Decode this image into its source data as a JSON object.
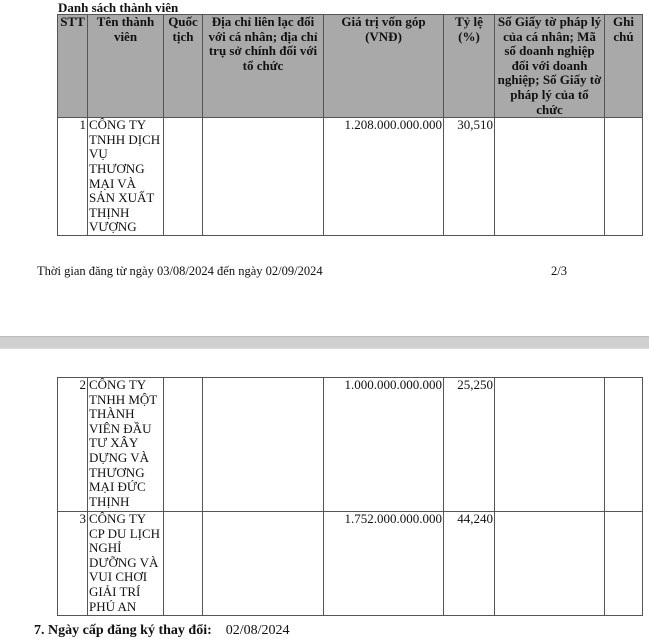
{
  "section_title": "Danh sách thành viên",
  "columns": [
    "STT",
    "Tên thành viên",
    "Quốc tịch",
    "Địa chỉ liên lạc đối với cá nhân; địa chỉ trụ sở chính đối với tổ chức",
    "Giá trị vốn góp (VNĐ)",
    "Tỷ lệ (%)",
    "Số Giấy tờ pháp lý của cá nhân; Mã số doanh nghiệp đối với doanh nghiệp; Số Giấy tờ pháp lý của tổ chức",
    "Ghi chú"
  ],
  "rows": [
    {
      "stt": "1",
      "name": "CÔNG TY TNHH DỊCH VỤ THƯƠNG MẠI VÀ SẢN XUẤT THỊNH VƯỢNG",
      "nationality": "",
      "address": "",
      "capital": "1.208.000.000.000",
      "ratio": "30,510",
      "legal_id": "",
      "note": ""
    },
    {
      "stt": "2",
      "name": "CÔNG TY TNHH MỘT THÀNH VIÊN ĐẦU TƯ XÂY DỰNG VÀ THƯƠNG MẠI ĐỨC THỊNH",
      "nationality": "",
      "address": "",
      "capital": "1.000.000.000.000",
      "ratio": "25,250",
      "legal_id": "",
      "note": ""
    },
    {
      "stt": "3",
      "name": "CÔNG TY CP DU LỊCH NGHỈ DƯỠNG VÀ VUI CHƠI GIẢI TRÍ PHÚ AN",
      "nationality": "",
      "address": "",
      "capital": "1.752.000.000.000",
      "ratio": "44,240",
      "legal_id": "",
      "note": ""
    }
  ],
  "page_footer": {
    "text": "Thời gian đăng  từ ngày 03/08/2024 đến ngày 02/09/2024",
    "page": "2/3"
  },
  "section7": {
    "label": "7. Ngày cấp đăng ký thay đổi:",
    "value": "02/08/2024"
  }
}
